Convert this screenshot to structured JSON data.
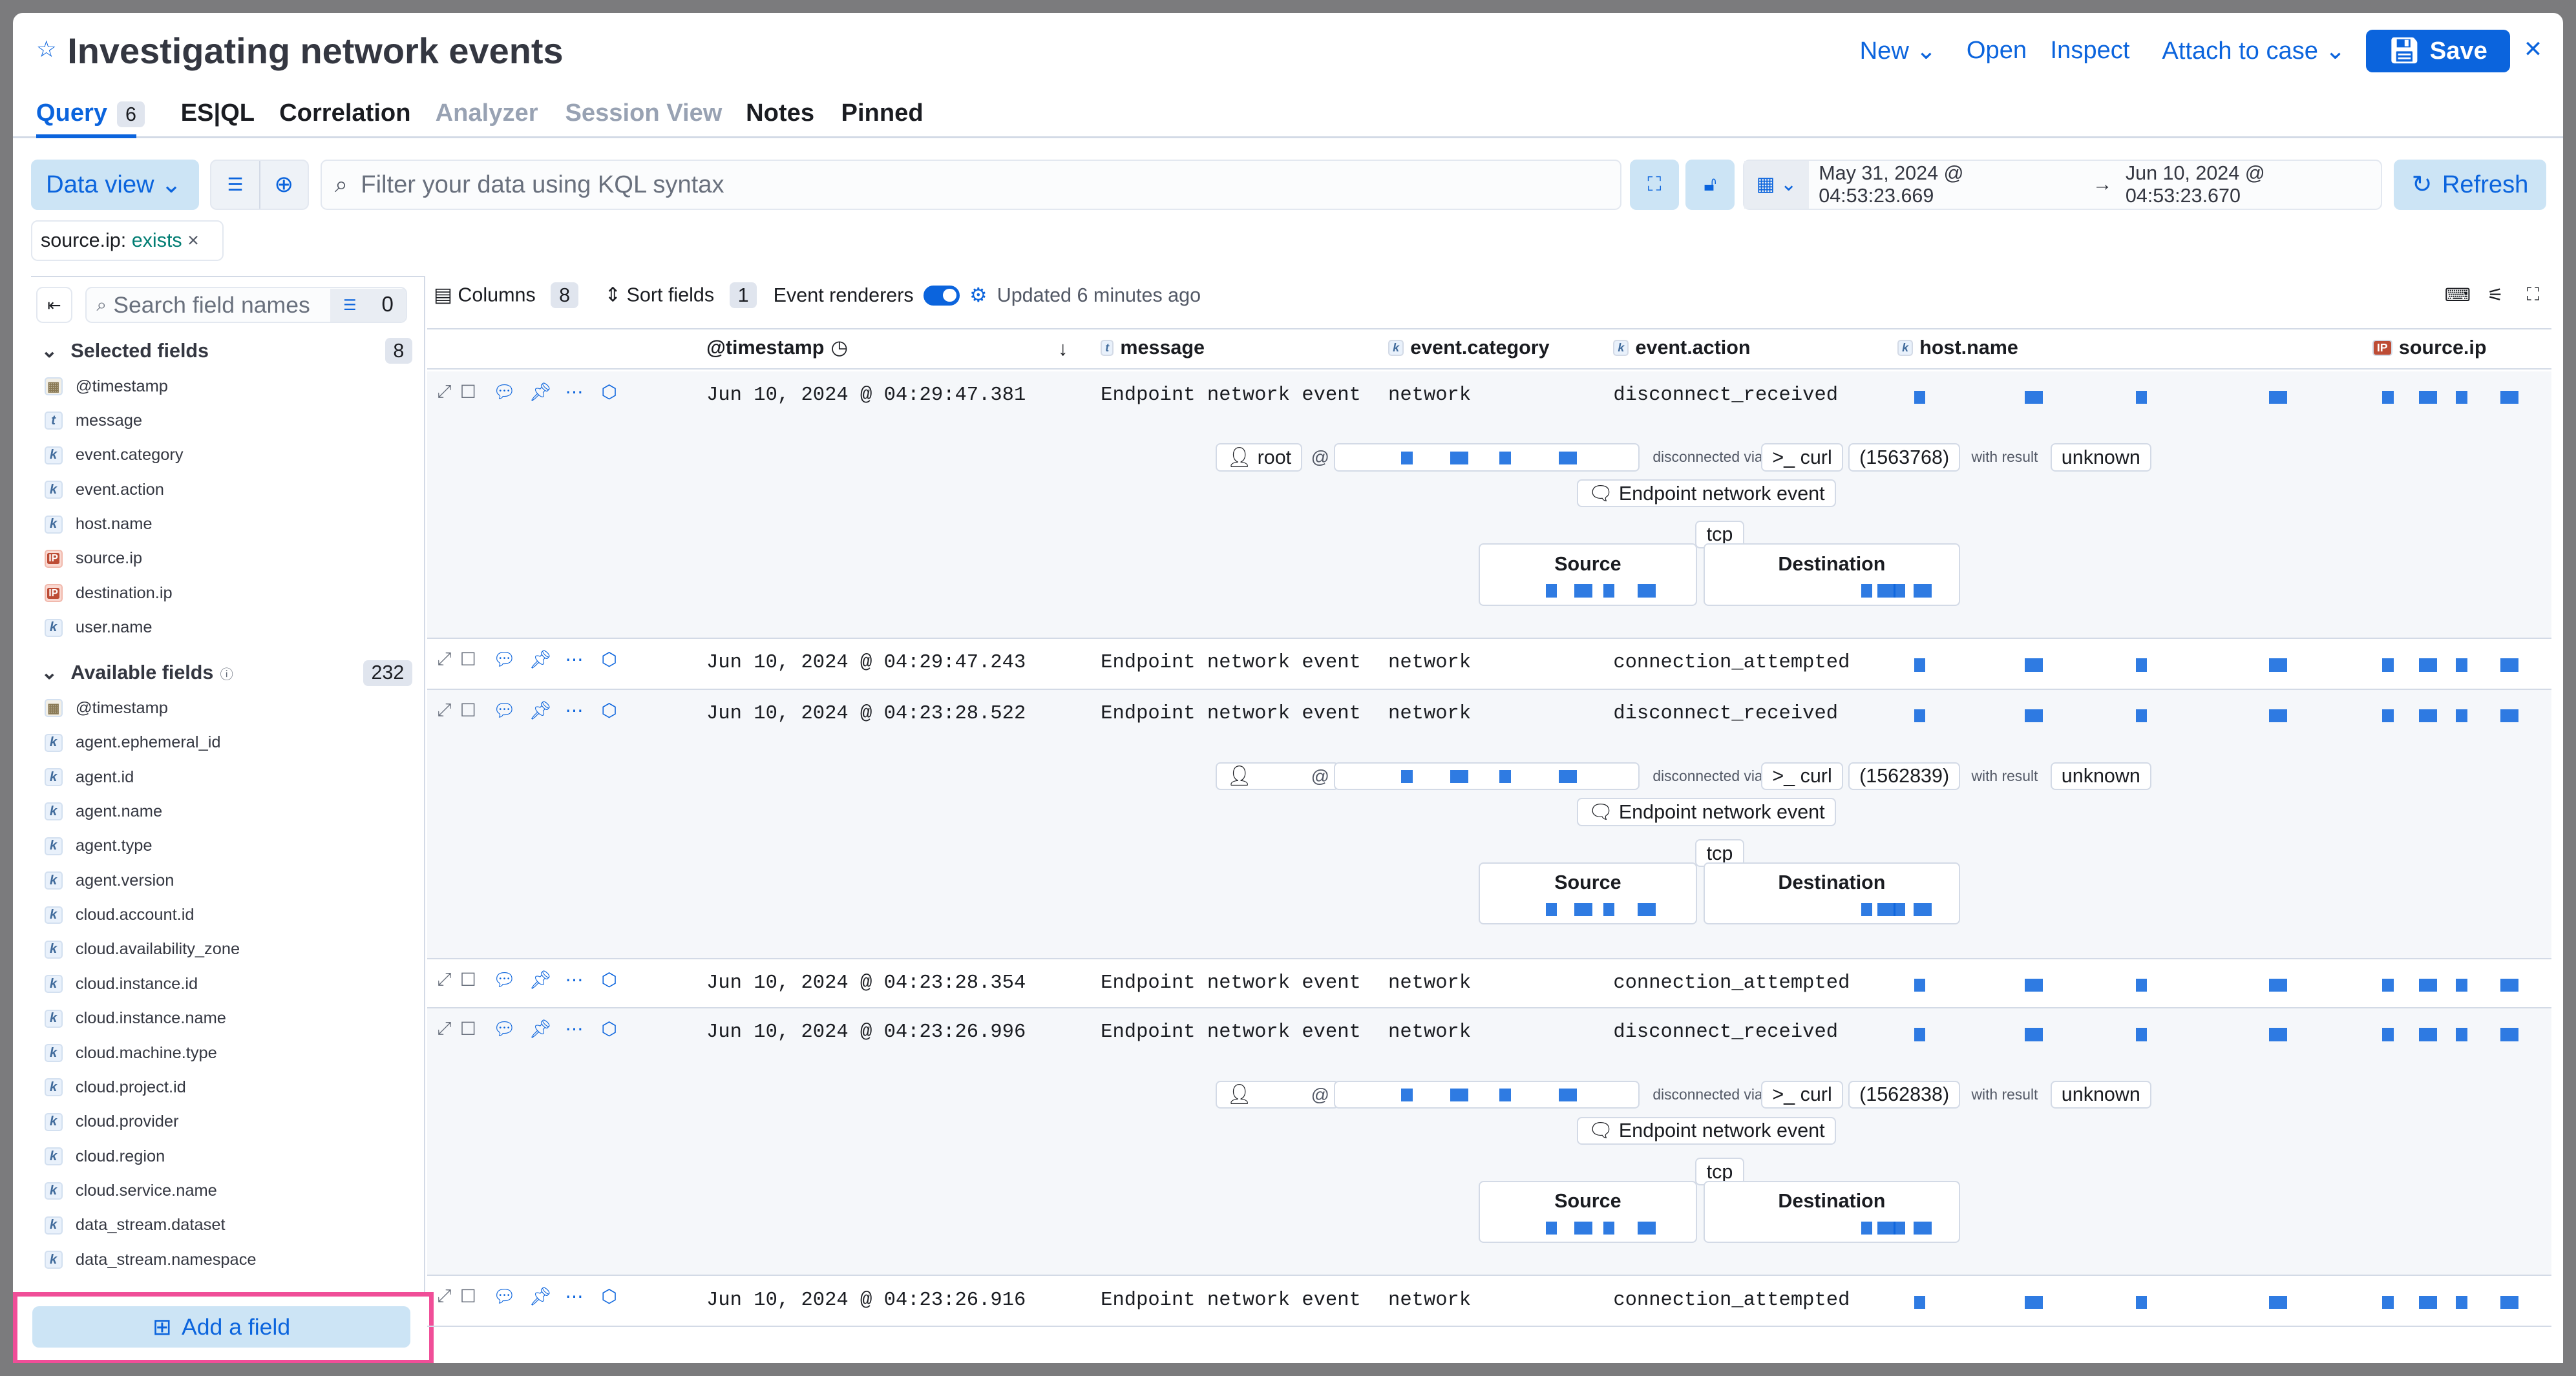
{
  "header": {
    "title": "Investigating network events",
    "actions": [
      "New",
      "Open",
      "Inspect",
      "Attach to case"
    ],
    "save": "Save"
  },
  "tabs": [
    {
      "label": "Query",
      "badge": "6",
      "state": "active"
    },
    {
      "label": "ES|QL"
    },
    {
      "label": "Correlation"
    },
    {
      "label": "Analyzer",
      "state": "disabled"
    },
    {
      "label": "Session View",
      "state": "disabled"
    },
    {
      "label": "Notes"
    },
    {
      "label": "Pinned"
    }
  ],
  "query": {
    "data_view": "Data view",
    "placeholder": "Filter your data using KQL syntax",
    "date_start": "May 31, 2024 @ 04:53:23.669",
    "date_end": "Jun 10, 2024 @ 04:53:23.670",
    "refresh": "Refresh"
  },
  "filter": {
    "field": "source.ip:",
    "op": "exists"
  },
  "sidebar": {
    "search_placeholder": "Search field names",
    "filter_count": "0",
    "selected_label": "Selected fields",
    "selected_count": "8",
    "selected": [
      {
        "t": "dt",
        "n": "@timestamp"
      },
      {
        "t": "t",
        "n": "message"
      },
      {
        "t": "k",
        "n": "event.category"
      },
      {
        "t": "k",
        "n": "event.action"
      },
      {
        "t": "k",
        "n": "host.name"
      },
      {
        "t": "ip",
        "n": "source.ip"
      },
      {
        "t": "ip",
        "n": "destination.ip"
      },
      {
        "t": "k",
        "n": "user.name"
      }
    ],
    "available_label": "Available fields",
    "available_count": "232",
    "available": [
      {
        "t": "dt",
        "n": "@timestamp"
      },
      {
        "t": "k",
        "n": "agent.ephemeral_id"
      },
      {
        "t": "k",
        "n": "agent.id"
      },
      {
        "t": "k",
        "n": "agent.name"
      },
      {
        "t": "k",
        "n": "agent.type"
      },
      {
        "t": "k",
        "n": "agent.version"
      },
      {
        "t": "k",
        "n": "cloud.account.id"
      },
      {
        "t": "k",
        "n": "cloud.availability_zone"
      },
      {
        "t": "k",
        "n": "cloud.instance.id"
      },
      {
        "t": "k",
        "n": "cloud.instance.name"
      },
      {
        "t": "k",
        "n": "cloud.machine.type"
      },
      {
        "t": "k",
        "n": "cloud.project.id"
      },
      {
        "t": "k",
        "n": "cloud.provider"
      },
      {
        "t": "k",
        "n": "cloud.region"
      },
      {
        "t": "k",
        "n": "cloud.service.name"
      },
      {
        "t": "k",
        "n": "data_stream.dataset"
      },
      {
        "t": "k",
        "n": "data_stream.namespace"
      }
    ],
    "add_field": "Add a field"
  },
  "toolbar": {
    "columns": "Columns",
    "columns_count": "8",
    "sort": "Sort fields",
    "sort_count": "1",
    "renderers": "Event renderers",
    "renderers_on": true,
    "updated": "Updated 6 minutes ago"
  },
  "columns": [
    {
      "k": "",
      "n": "@timestamp"
    },
    {
      "k": "t",
      "n": "message"
    },
    {
      "k": "k",
      "n": "event.category"
    },
    {
      "k": "k",
      "n": "event.action"
    },
    {
      "k": "k",
      "n": "host.name"
    },
    {
      "k": "IP",
      "n": "source.ip"
    }
  ],
  "rows": [
    {
      "ts": "Jun 10, 2024 @ 04:29:47.381",
      "msg": "Endpoint network event",
      "cat": "network",
      "action": "disconnect_received",
      "renderer": {
        "user": "root",
        "verb": "disconnected via",
        "process": "curl",
        "pid": "(1563768)",
        "result_label": "with result",
        "result": "unknown",
        "message": "Endpoint network event",
        "transport": "tcp",
        "source": "Source",
        "destination": "Destination"
      }
    },
    {
      "ts": "Jun 10, 2024 @ 04:29:47.243",
      "msg": "Endpoint network event",
      "cat": "network",
      "action": "connection_attempted"
    },
    {
      "ts": "Jun 10, 2024 @ 04:23:28.522",
      "msg": "Endpoint network event",
      "cat": "network",
      "action": "disconnect_received",
      "renderer": {
        "user": "",
        "verb": "disconnected via",
        "process": "curl",
        "pid": "(1562839)",
        "result_label": "with result",
        "result": "unknown",
        "message": "Endpoint network event",
        "transport": "tcp",
        "source": "Source",
        "destination": "Destination"
      }
    },
    {
      "ts": "Jun 10, 2024 @ 04:23:28.354",
      "msg": "Endpoint network event",
      "cat": "network",
      "action": "connection_attempted"
    },
    {
      "ts": "Jun 10, 2024 @ 04:23:26.996",
      "msg": "Endpoint network event",
      "cat": "network",
      "action": "disconnect_received",
      "renderer": {
        "user": "",
        "verb": "disconnected via",
        "process": "curl",
        "pid": "(1562838)",
        "result_label": "with result",
        "result": "unknown",
        "message": "Endpoint network event",
        "transport": "tcp",
        "source": "Source",
        "destination": "Destination"
      }
    },
    {
      "ts": "Jun 10, 2024 @ 04:23:26.916",
      "msg": "Endpoint network event",
      "cat": "network",
      "action": "connection_attempted"
    }
  ],
  "colors": {
    "accent": "#0b64dd",
    "accent_light": "#cce4f5",
    "highlight": "#f04e98"
  }
}
